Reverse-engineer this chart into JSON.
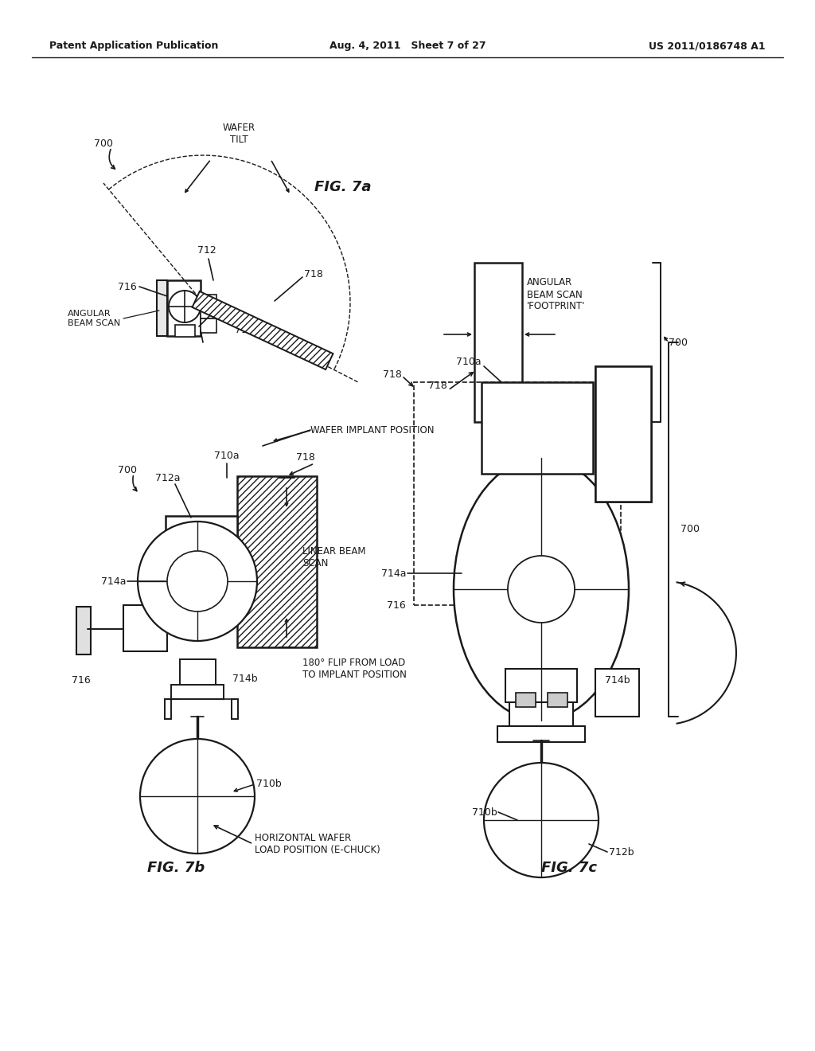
{
  "header_left": "Patent Application Publication",
  "header_center": "Aug. 4, 2011   Sheet 7 of 27",
  "header_right": "US 2011/0186748 A1",
  "fig7a_label": "FIG. 7a",
  "fig7b_label": "FIG. 7b",
  "fig7c_label": "FIG. 7c",
  "bg_color": "#ffffff",
  "line_color": "#1a1a1a"
}
